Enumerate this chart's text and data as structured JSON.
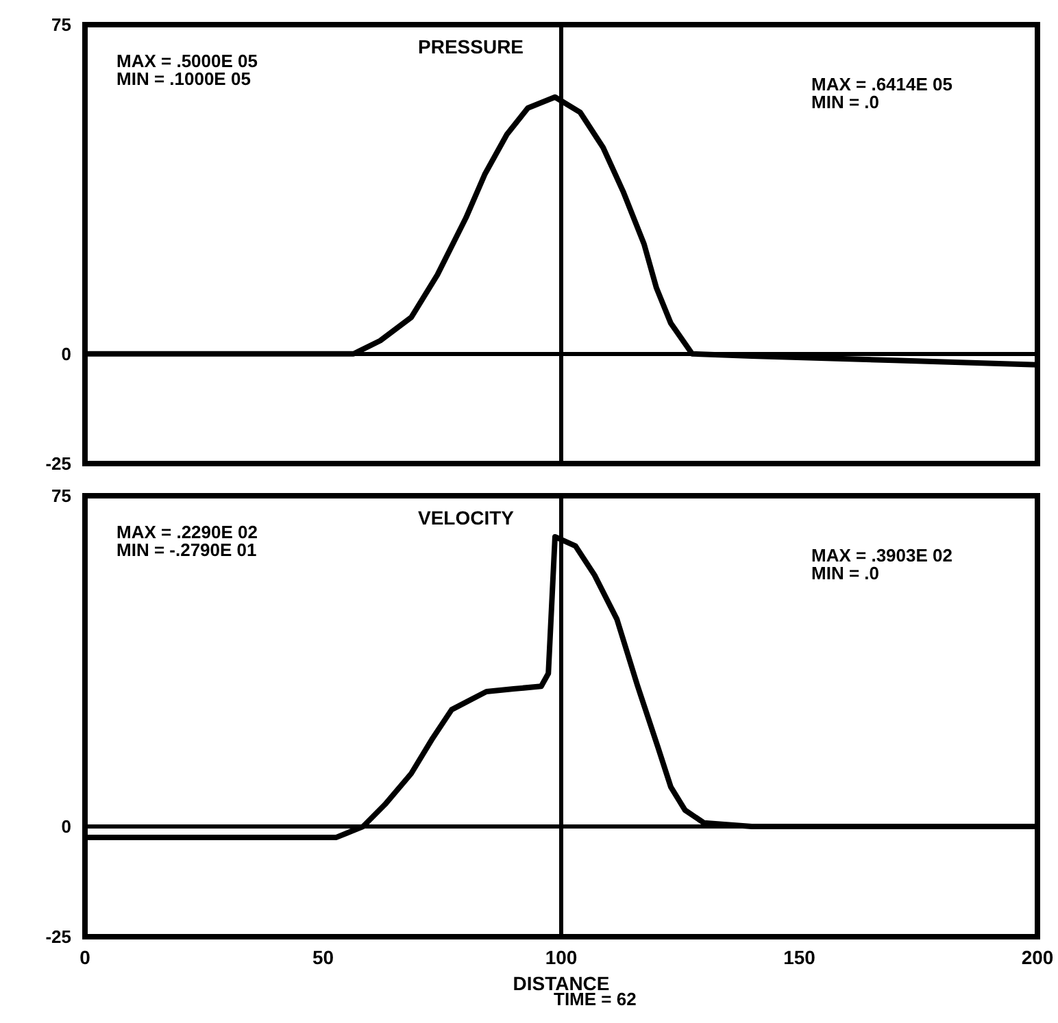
{
  "chart_data": [
    {
      "type": "line",
      "title": "PRESSURE",
      "x": [
        0,
        40,
        56.4,
        62,
        68.5,
        74,
        80,
        84,
        88.6,
        93,
        98.7,
        104,
        108.8,
        113,
        117.4,
        120,
        123,
        127.5,
        140,
        170,
        200
      ],
      "series": [
        {
          "color": "#000000",
          "values": [
            0,
            0,
            0,
            3,
            8.3,
            18,
            31,
            41,
            50,
            56,
            58.5,
            55,
            47,
            37,
            25,
            15,
            7,
            0,
            -0.5,
            -1.5,
            -2.5
          ]
        }
      ],
      "xlim": [
        0,
        200
      ],
      "ylim": [
        -25,
        75
      ],
      "yticks": [
        -25,
        0,
        75
      ],
      "tick_labels": "y",
      "grid": false,
      "legend": false,
      "marker": "none",
      "line_style": "solid",
      "ref_lines": [
        {
          "axis": "x",
          "value": 100
        },
        {
          "axis": "y",
          "value": 0
        }
      ],
      "annotations": [
        "MAX = .5000E 05",
        "MIN = .1000E 05",
        "MAX = .6414E 05",
        "MIN = .0"
      ]
    },
    {
      "type": "line",
      "title": "VELOCITY",
      "xlabel": "DISTANCE",
      "x": [
        0,
        30,
        52.7,
        58.4,
        63,
        68.5,
        73,
        77,
        84.3,
        90,
        95.8,
        97.3,
        98.7,
        103,
        107,
        111.7,
        116,
        120.3,
        123,
        126,
        130,
        140,
        200
      ],
      "series": [
        {
          "color": "#000000",
          "values": [
            -2.5,
            -2.5,
            -2.5,
            0,
            5,
            12,
            20,
            26.5,
            30.6,
            31.2,
            31.8,
            34.7,
            65.7,
            63.6,
            57,
            47,
            32,
            18,
            9,
            3.7,
            0.8,
            0,
            0
          ]
        }
      ],
      "xlim": [
        0,
        200
      ],
      "xticks": [
        0,
        50,
        100,
        150,
        200
      ],
      "ylim": [
        -25,
        75
      ],
      "yticks": [
        -25,
        0,
        75
      ],
      "grid": false,
      "legend": false,
      "marker": "none",
      "line_style": "solid",
      "ref_lines": [
        {
          "axis": "x",
          "value": 100
        },
        {
          "axis": "y",
          "value": 0
        }
      ],
      "annotations": [
        "MAX = .2290E 02",
        "MIN = -.2790E 01",
        "MAX = .3903E 02",
        "MIN = .0",
        "TIME = 62"
      ]
    }
  ]
}
